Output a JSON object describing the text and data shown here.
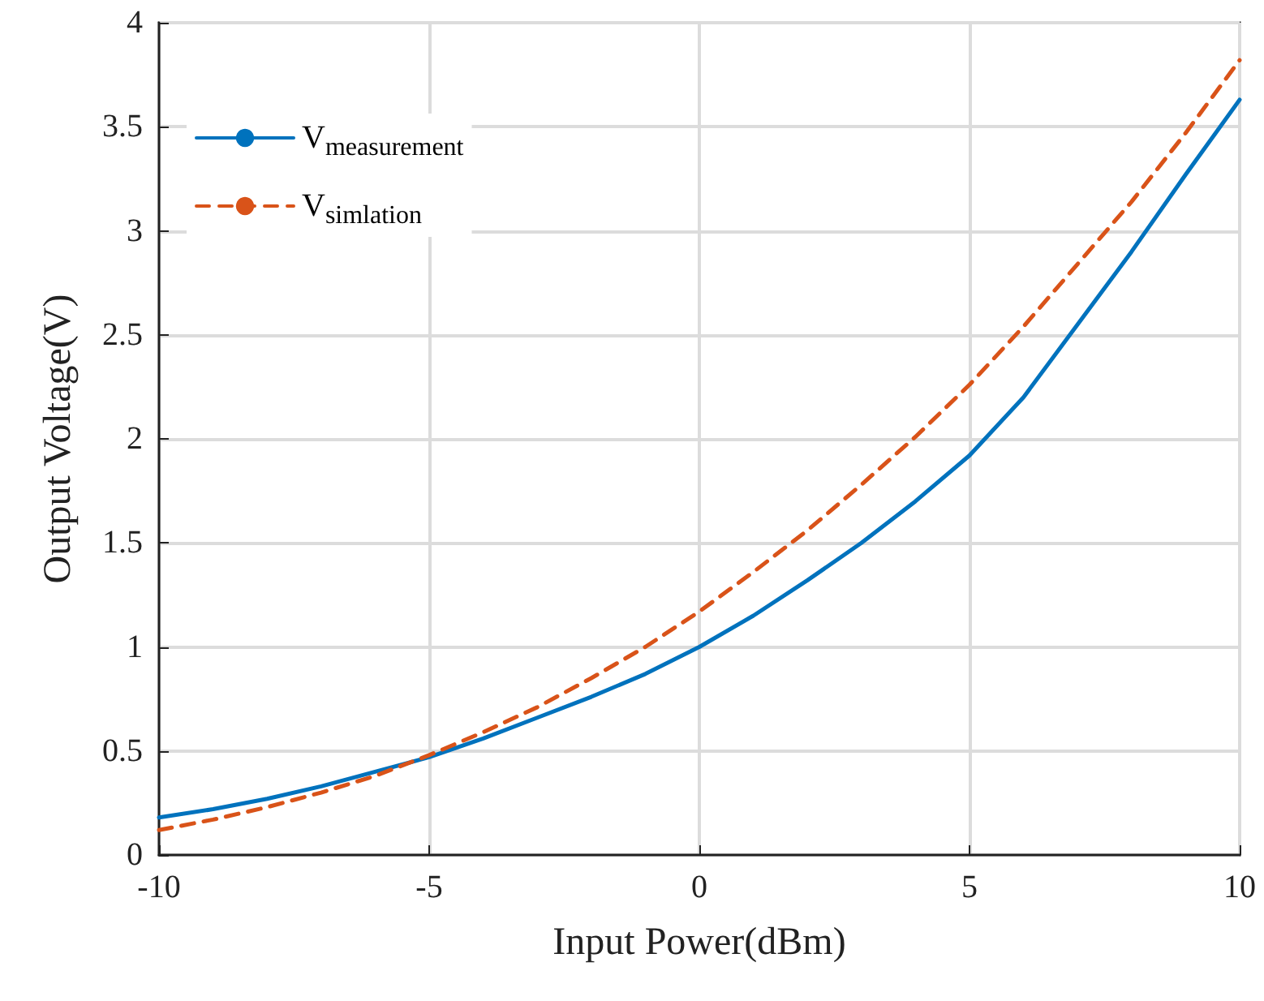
{
  "chart_data": {
    "type": "line",
    "xlabel": "Input Power(dBm)",
    "ylabel": "Output Voltage(V)",
    "x": [
      -10,
      -9,
      -8,
      -7,
      -6,
      -5,
      -4,
      -3,
      -2,
      -1,
      0,
      1,
      2,
      3,
      4,
      5,
      6,
      7,
      8,
      9,
      10
    ],
    "series": [
      {
        "name": "V$_{measurement}$",
        "color": "#0072bd",
        "line_style": "solid",
        "values": [
          0.18,
          0.22,
          0.27,
          0.33,
          0.4,
          0.47,
          0.56,
          0.66,
          0.76,
          0.87,
          1.0,
          1.15,
          1.32,
          1.5,
          1.7,
          1.92,
          2.2,
          2.55,
          2.9,
          3.27,
          3.63
        ]
      },
      {
        "name": "V$_{simlation}$",
        "color": "#d95319",
        "line_style": "dashed",
        "values": [
          0.12,
          0.17,
          0.23,
          0.3,
          0.38,
          0.48,
          0.59,
          0.71,
          0.85,
          1.0,
          1.17,
          1.36,
          1.56,
          1.78,
          2.01,
          2.26,
          2.54,
          2.84,
          3.14,
          3.47,
          3.82
        ]
      }
    ],
    "xlim": [
      -10,
      10
    ],
    "xticks": [
      -10,
      -5,
      0,
      5,
      10
    ],
    "ylim": [
      0,
      4
    ],
    "yticks": [
      0,
      0.5,
      1,
      1.5,
      2,
      2.5,
      3,
      3.5,
      4
    ],
    "grid": true,
    "legend": "top left",
    "marker": "none"
  }
}
